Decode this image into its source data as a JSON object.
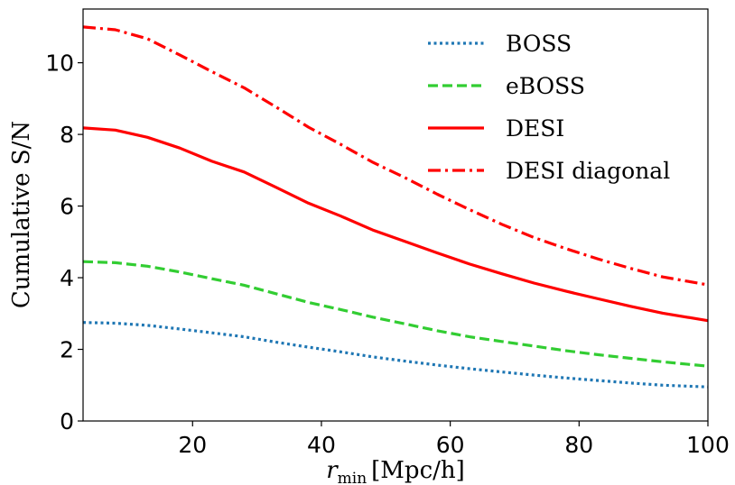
{
  "chart_data": {
    "type": "line",
    "xlabel_main": "r",
    "xlabel_sub": "min",
    "xlabel_rest": "[Mpc/h]",
    "ylabel": "Cumulative S/N",
    "xlim": [
      3,
      100
    ],
    "ylim": [
      0,
      11.5
    ],
    "x_ticks": [
      20,
      40,
      60,
      80,
      100
    ],
    "y_ticks": [
      0,
      2,
      4,
      6,
      8,
      10
    ],
    "grid": false,
    "legend_position": "top-right",
    "series": [
      {
        "name": "BOSS",
        "color": "#1f77b4",
        "style": "dotted",
        "x": [
          3,
          8,
          13,
          18,
          23,
          28,
          33,
          38,
          43,
          48,
          53,
          58,
          63,
          68,
          73,
          78,
          83,
          88,
          93,
          100
        ],
        "y": [
          2.75,
          2.73,
          2.67,
          2.57,
          2.46,
          2.35,
          2.2,
          2.06,
          1.93,
          1.79,
          1.67,
          1.56,
          1.46,
          1.37,
          1.28,
          1.2,
          1.13,
          1.06,
          1.0,
          0.95
        ]
      },
      {
        "name": "eBOSS",
        "color": "#32cd32",
        "style": "dashed",
        "x": [
          3,
          8,
          13,
          18,
          23,
          28,
          33,
          38,
          43,
          48,
          53,
          58,
          63,
          68,
          73,
          78,
          83,
          88,
          93,
          100
        ],
        "y": [
          4.45,
          4.42,
          4.32,
          4.16,
          3.97,
          3.79,
          3.55,
          3.31,
          3.11,
          2.9,
          2.71,
          2.52,
          2.35,
          2.22,
          2.09,
          1.96,
          1.85,
          1.75,
          1.65,
          1.53
        ]
      },
      {
        "name": "DESI",
        "color": "#ff0000",
        "style": "solid",
        "x": [
          3,
          8,
          13,
          18,
          23,
          28,
          33,
          38,
          43,
          48,
          53,
          58,
          63,
          68,
          73,
          78,
          83,
          88,
          93,
          100
        ],
        "y": [
          8.18,
          8.12,
          7.92,
          7.62,
          7.25,
          6.95,
          6.52,
          6.08,
          5.72,
          5.33,
          5.01,
          4.69,
          4.38,
          4.11,
          3.85,
          3.62,
          3.41,
          3.2,
          3.01,
          2.8
        ]
      },
      {
        "name": "DESI diagonal",
        "color": "#ff0000",
        "style": "dashdot",
        "x": [
          3,
          8,
          13,
          18,
          23,
          28,
          33,
          38,
          43,
          48,
          53,
          58,
          63,
          68,
          73,
          78,
          83,
          88,
          93,
          100
        ],
        "y": [
          11.0,
          10.92,
          10.67,
          10.22,
          9.75,
          9.3,
          8.76,
          8.2,
          7.72,
          7.22,
          6.79,
          6.33,
          5.9,
          5.49,
          5.12,
          4.81,
          4.52,
          4.26,
          4.02,
          3.8
        ]
      }
    ]
  }
}
